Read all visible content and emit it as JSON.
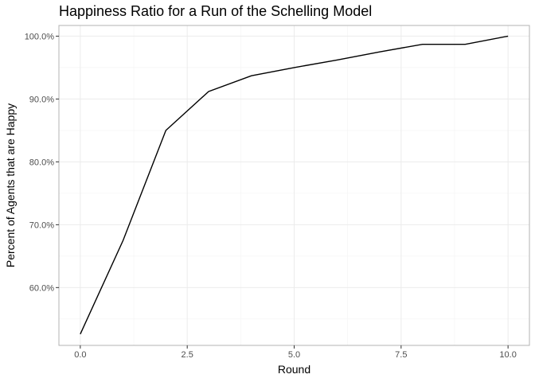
{
  "chart_data": {
    "type": "line",
    "title": "Happiness Ratio for a Run of the Schelling Model",
    "xlabel": "Round",
    "ylabel": "Percent of Agents that are Happy",
    "xlim": [
      -0.5,
      10.5
    ],
    "ylim": [
      50.8,
      101.7
    ],
    "grid": true,
    "x_ticks": [
      0,
      2.5,
      5,
      7.5,
      10
    ],
    "x_tick_labels": [
      "0.0",
      "2.5",
      "5.0",
      "7.5",
      "10.0"
    ],
    "y_ticks": [
      60,
      70,
      80,
      90,
      100
    ],
    "y_tick_labels": [
      "60.0%",
      "70.0%",
      "80.0%",
      "90.0%",
      "100.0%"
    ],
    "series": [
      {
        "x": [
          0,
          1,
          2,
          3,
          4,
          5,
          6,
          7,
          8,
          9,
          10
        ],
        "y": [
          52.6,
          67.5,
          85.0,
          91.2,
          93.7,
          95.0,
          96.2,
          97.5,
          98.7,
          98.7,
          100.0
        ],
        "color": "#000000"
      }
    ]
  }
}
